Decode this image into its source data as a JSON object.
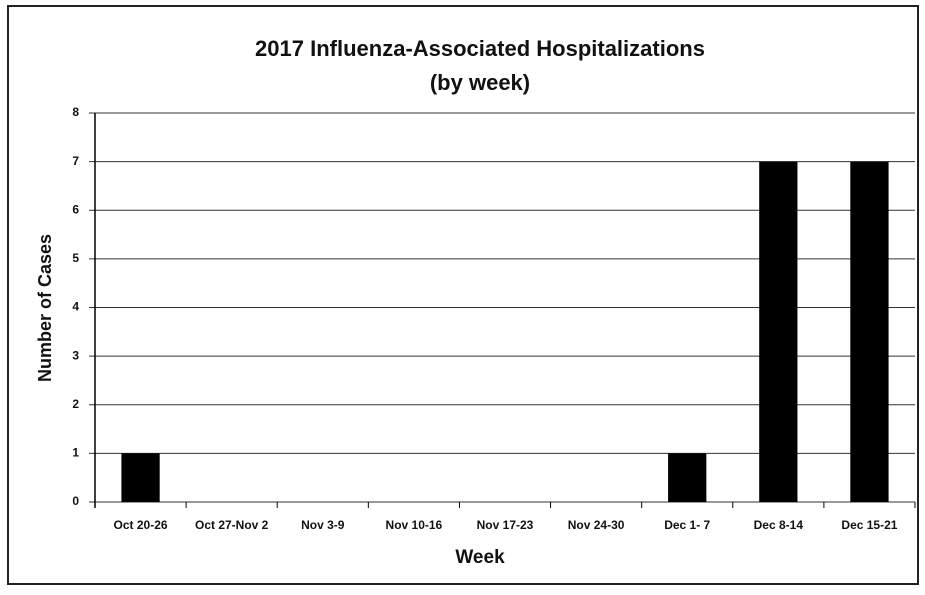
{
  "chart_data": {
    "type": "bar",
    "title": "2017 Influenza-Associated Hospitalizations",
    "subtitle": "(by week)",
    "x_label": "Week",
    "y_label": "Number of Cases",
    "categories": [
      "Oct 20-26",
      "Oct 27-Nov 2",
      "Nov 3-9",
      "Nov 10-16",
      "Nov 17-23",
      "Nov 24-30",
      "Dec 1- 7",
      "Dec 8-14",
      "Dec 15-21"
    ],
    "values": [
      1,
      0,
      0,
      0,
      0,
      0,
      1,
      7,
      7
    ],
    "color": "#000000",
    "ylim": [
      0,
      8
    ],
    "yticks": [
      0,
      1,
      2,
      3,
      4,
      5,
      6,
      7,
      8
    ],
    "grid": true
  }
}
